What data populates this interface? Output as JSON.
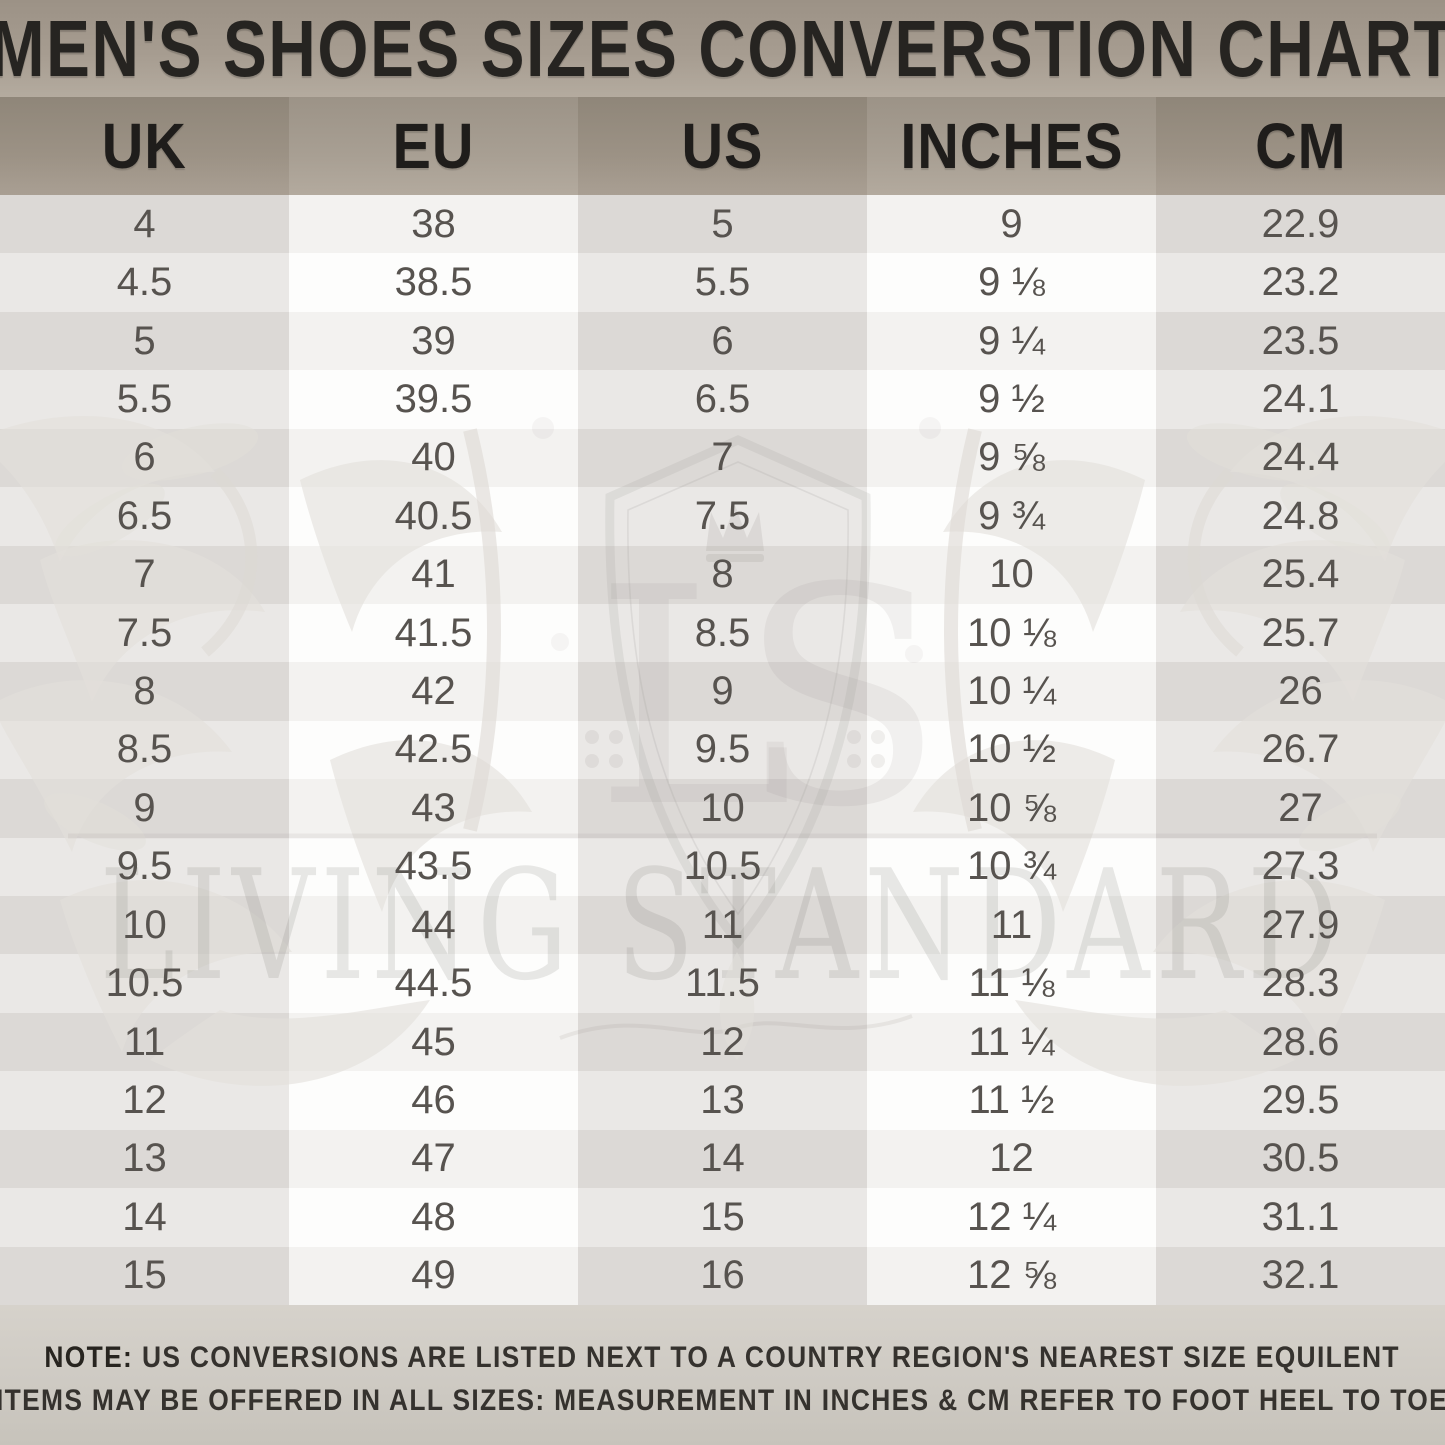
{
  "title": "MEN'S SHOES SIZES CONVERSTION CHART",
  "chart_data": {
    "type": "table",
    "title": "MEN'S SHOES SIZES CONVERSTION CHART",
    "columns": [
      "UK",
      "EU",
      "US",
      "INCHES",
      "CM"
    ],
    "rows": [
      [
        "4",
        "38",
        "5",
        "9",
        "22.9"
      ],
      [
        "4.5",
        "38.5",
        "5.5",
        "9 ⅛",
        "23.2"
      ],
      [
        "5",
        "39",
        "6",
        "9 ¼",
        "23.5"
      ],
      [
        "5.5",
        "39.5",
        "6.5",
        "9 ½",
        "24.1"
      ],
      [
        "6",
        "40",
        "7",
        "9 ⅝",
        "24.4"
      ],
      [
        "6.5",
        "40.5",
        "7.5",
        "9 ¾",
        "24.8"
      ],
      [
        "7",
        "41",
        "8",
        "10",
        "25.4"
      ],
      [
        "7.5",
        "41.5",
        "8.5",
        "10 ⅛",
        "25.7"
      ],
      [
        "8",
        "42",
        "9",
        "10 ¼",
        "26"
      ],
      [
        "8.5",
        "42.5",
        "9.5",
        "10 ½",
        "26.7"
      ],
      [
        "9",
        "43",
        "10",
        "10 ⅝",
        "27"
      ],
      [
        "9.5",
        "43.5",
        "10.5",
        "10 ¾",
        "27.3"
      ],
      [
        "10",
        "44",
        "11",
        "11",
        "27.9"
      ],
      [
        "10.5",
        "44.5",
        "11.5",
        "11 ⅛",
        "28.3"
      ],
      [
        "11",
        "45",
        "12",
        "11 ¼",
        "28.6"
      ],
      [
        "12",
        "46",
        "13",
        "11 ½",
        "29.5"
      ],
      [
        "13",
        "47",
        "14",
        "12",
        "30.5"
      ],
      [
        "14",
        "48",
        "15",
        "12 ¼",
        "31.1"
      ],
      [
        "15",
        "49",
        "16",
        "12 ⅝",
        "32.1"
      ]
    ]
  },
  "note": {
    "label": "NOTE:",
    "line1": "US CONVERSIONS ARE LISTED NEXT TO A COUNTRY REGION'S NEAREST SIZE EQUILENT",
    "line2": "ITEMS MAY BE OFFERED IN ALL SIZES: MEASUREMENT IN INCHES & CM REFER TO FOOT HEEL TO TOE"
  },
  "watermark": {
    "brand": "LIVING STANDARD",
    "monogram": "LS"
  },
  "colors": {
    "band_taupe_top": "#9c9286",
    "band_taupe_bottom": "#b4ab9f",
    "row_gray_dark": "#dcd9d6",
    "row_gray_light": "#eae8e6",
    "row_white_dark": "#f3f2f0",
    "row_white_light": "#fdfdfc",
    "note_bg": "#cfcbc4",
    "title_text": "#262421",
    "body_text": "#57534f"
  }
}
